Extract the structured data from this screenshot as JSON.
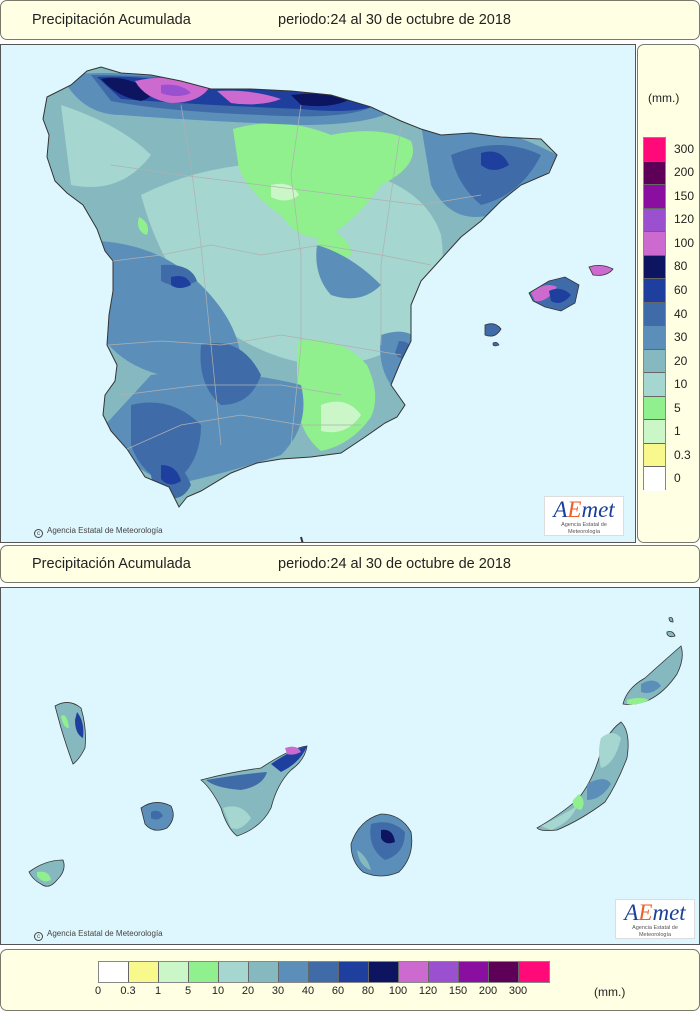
{
  "top_panel": {
    "label": "Precipitación Acumulada",
    "period": "periodo:24 al 30 de octubre de 2018"
  },
  "bottom_panel": {
    "label": "Precipitación Acumulada",
    "period": "periodo:24 al 30 de octubre de 2018"
  },
  "credit": "Agencia Estatal de Meteorología",
  "logo": {
    "brand": "AEmet",
    "subtitle": "Agencia Estatal de Meteorología"
  },
  "legend": {
    "unit": "(mm.)",
    "levels": [
      "0",
      "0.3",
      "1",
      "5",
      "10",
      "20",
      "30",
      "40",
      "60",
      "80",
      "100",
      "120",
      "150",
      "200",
      "300"
    ],
    "colors": [
      "#ffffff",
      "#f8f88c",
      "#cbf7c8",
      "#90f08e",
      "#a5d6cf",
      "#86b9bf",
      "#5b8fb9",
      "#3f6ca8",
      "#1f3f9f",
      "#0d1561",
      "#cd6ad0",
      "#9a50cf",
      "#8a0fa0",
      "#5f0058",
      "#ff0a78"
    ]
  },
  "palette": {
    "sea": "#def6fe",
    "water": "#ffffff",
    "band10": "#a5d6cf",
    "band20": "#86b9bf",
    "band5": "#90f08e",
    "band1": "#cbf7c8",
    "band30": "#5b8fb9",
    "band40": "#3f6ca8",
    "band60": "#1f3f9f",
    "band80": "#0d1561",
    "band100": "#cd6ad0",
    "band120": "#9a50cf"
  }
}
